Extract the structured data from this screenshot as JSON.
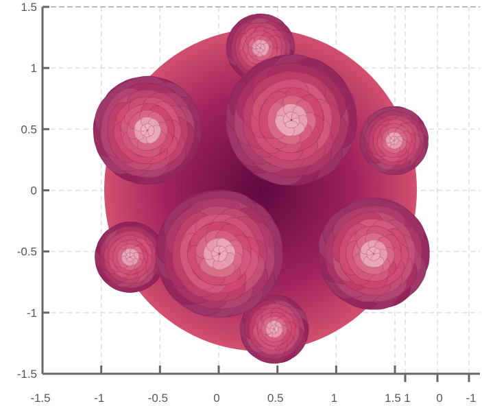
{
  "chart_data": {
    "type": "surface",
    "yaxis": {
      "ticks": [
        "1.5",
        "1",
        "0.5",
        "0",
        "-0.5",
        "-1",
        "-1.5"
      ],
      "values": [
        1.5,
        1,
        0.5,
        0,
        -0.5,
        -1,
        -1.5
      ],
      "range": [
        -1.5,
        1.5
      ]
    },
    "xaxis": {
      "ticks": [
        "-1.5",
        "-1",
        "-0.5",
        "0",
        "0.5",
        "1",
        "1.5"
      ],
      "values": [
        -1.5,
        -1,
        -0.5,
        0,
        0.5,
        1,
        1.5
      ],
      "range": [
        -1.5,
        1.5
      ]
    },
    "zaxis": {
      "ticks": [
        "1",
        "0",
        "-1"
      ],
      "values": [
        1,
        0,
        -1
      ]
    },
    "grid": true,
    "colors": {
      "dark": "#6e0f4a",
      "mid": "#c8406e",
      "light": "#f08aa0",
      "highlight": "#f3c9d2",
      "axis": "#666666",
      "grid": "#dddddd"
    }
  }
}
